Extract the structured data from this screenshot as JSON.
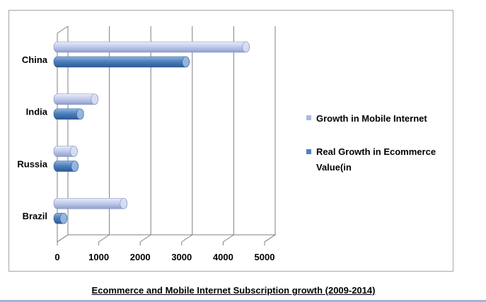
{
  "chart_data": {
    "type": "bar",
    "orientation": "horizontal",
    "style": "3d-cylinder",
    "categories": [
      "China",
      "India",
      "Russia",
      "Brazil"
    ],
    "series": [
      {
        "name": "Growth in Mobile Internet",
        "values": [
          4550,
          900,
          400,
          1600
        ],
        "color": "#b7c3e6"
      },
      {
        "name": "Real Growth in Ecommerce Value(in",
        "values": [
          3100,
          550,
          420,
          150
        ],
        "color": "#4f81bd"
      }
    ],
    "xlim": [
      0,
      5000
    ],
    "xticks": [
      "0",
      "1000",
      "2000",
      "3000",
      "4000",
      "5000"
    ],
    "grid": true,
    "legend_position": "right"
  },
  "caption": "Ecommerce and Mobile Internet Subscription growth (2009-2014)",
  "legend": {
    "items": [
      {
        "label": "Growth in Mobile Internet",
        "color": "#a9b9e0"
      },
      {
        "label_line1": "Real Growth in Ecommerce",
        "label_line2": "Value(in",
        "color": "#4f81bd"
      }
    ]
  }
}
